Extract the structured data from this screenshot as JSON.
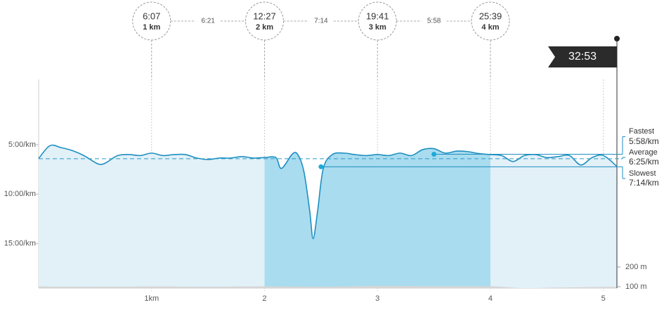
{
  "chart_data": {
    "type": "area",
    "y_inverted": true,
    "xlim": [
      0,
      5.12
    ],
    "xticks": [
      {
        "value": 1,
        "label": "1km"
      },
      2,
      3,
      4,
      5
    ],
    "ylim": [
      -1.6,
      19.5
    ],
    "yticks": [
      {
        "value": 5,
        "label": "5:00/km"
      },
      {
        "value": 10,
        "label": "10:00/km"
      },
      {
        "value": 15,
        "label": "15:00/km"
      }
    ],
    "y2lim": [
      93,
      1150
    ],
    "y2ticks": [
      {
        "value": 200,
        "label": "200 m"
      },
      {
        "value": 100,
        "label": "100 m"
      }
    ],
    "highlight": [
      2,
      4
    ],
    "highlight_color": "#a9dcef",
    "series": [
      {
        "color": "#1e8fc0",
        "fill": "#e2f0f8",
        "x": [
          0,
          0.1,
          0.2,
          0.3,
          0.4,
          0.5,
          0.55,
          0.6,
          0.7,
          0.8,
          0.9,
          1.0,
          1.1,
          1.2,
          1.3,
          1.4,
          1.5,
          1.6,
          1.7,
          1.8,
          1.9,
          2.0,
          2.1,
          2.15,
          2.25,
          2.3,
          2.35,
          2.4,
          2.43,
          2.47,
          2.52,
          2.6,
          2.7,
          2.8,
          2.9,
          3.0,
          3.1,
          3.2,
          3.3,
          3.4,
          3.5,
          3.6,
          3.7,
          3.8,
          3.9,
          4.0,
          4.1,
          4.2,
          4.3,
          4.4,
          4.5,
          4.6,
          4.7,
          4.8,
          4.9,
          5.0,
          5.12
        ],
        "values": [
          6.4,
          5.1,
          5.3,
          5.6,
          6.1,
          6.8,
          7.0,
          6.8,
          6.1,
          6.0,
          6.1,
          5.85,
          6.1,
          6.0,
          6.0,
          6.35,
          6.5,
          6.35,
          6.35,
          6.2,
          6.35,
          6.3,
          6.3,
          7.4,
          5.9,
          6.1,
          7.8,
          11.7,
          14.5,
          11.7,
          7.4,
          6.0,
          5.85,
          6.0,
          6.1,
          6.0,
          6.1,
          5.85,
          6.1,
          5.5,
          5.4,
          5.85,
          5.65,
          5.7,
          5.9,
          6.0,
          6.1,
          6.7,
          6.1,
          6.0,
          6.3,
          6.2,
          6.1,
          7.05,
          6.3,
          6.1,
          7.2
        ]
      },
      {
        "color": "#d6d6d6",
        "axis": "y2",
        "x": [
          0,
          0.5,
          1,
          1.5,
          2,
          2.5,
          3,
          3.5,
          4,
          4.3,
          4.6,
          5,
          5.12
        ],
        "values": [
          101,
          100,
          101,
          100,
          102,
          100,
          104,
          103,
          102,
          93,
          96,
          99,
          98
        ]
      }
    ],
    "splits": [
      {
        "time": "6:07",
        "label": "1 km",
        "km": 1
      },
      {
        "time": "12:27",
        "label": "2 km",
        "km": 2
      },
      {
        "time": "19:41",
        "label": "3 km",
        "km": 3
      },
      {
        "time": "25:39",
        "label": "4 km",
        "km": 4
      }
    ],
    "split_paces": [
      "6:21",
      "7:14",
      "5:58"
    ],
    "finish_time": "32:53",
    "summary": [
      {
        "label": "Fastest",
        "value_label": "5:58/km",
        "value": 5.967,
        "km": 3.5
      },
      {
        "label": "Average",
        "value_label": "6:25/km",
        "value": 6.417
      },
      {
        "label": "Slowest",
        "value_label": "7:14/km",
        "value": 7.233,
        "km": 2.5
      }
    ]
  }
}
